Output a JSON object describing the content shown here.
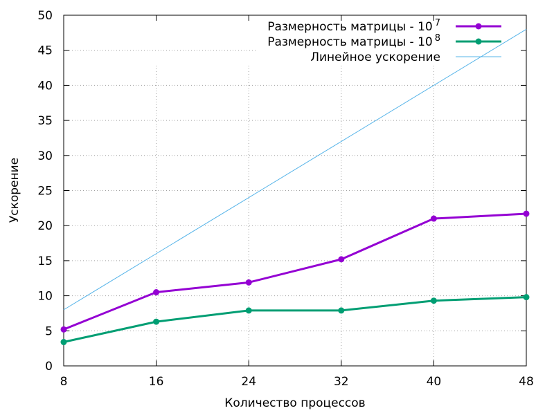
{
  "chart_data": {
    "type": "line",
    "xlabel": "Количество процессов",
    "ylabel": "Ускорение",
    "x": [
      8,
      16,
      24,
      32,
      40,
      48
    ],
    "xlim": [
      8,
      48
    ],
    "ylim": [
      0,
      50
    ],
    "xticks": [
      "8",
      "16",
      "24",
      "32",
      "40",
      "48"
    ],
    "yticks": [
      "0",
      "5",
      "10",
      "15",
      "20",
      "25",
      "30",
      "35",
      "40",
      "45",
      "50"
    ],
    "grid": true,
    "legend_position": "top-right",
    "series": [
      {
        "name": "Размерность матрицы - 10",
        "name_superscript": "7",
        "values": [
          5.2,
          10.5,
          11.9,
          15.2,
          21.0,
          21.7
        ],
        "color": "#9400d3",
        "marker": "circle"
      },
      {
        "name": "Размерность матрицы - 10",
        "name_superscript": "8",
        "values": [
          3.4,
          6.3,
          7.9,
          7.9,
          9.3,
          9.8
        ],
        "color": "#009e73",
        "marker": "circle"
      },
      {
        "name": "Линейное ускорение",
        "values": [
          8,
          16,
          24,
          32,
          40,
          48
        ],
        "color": "#56b4e9",
        "marker": "none"
      }
    ]
  }
}
